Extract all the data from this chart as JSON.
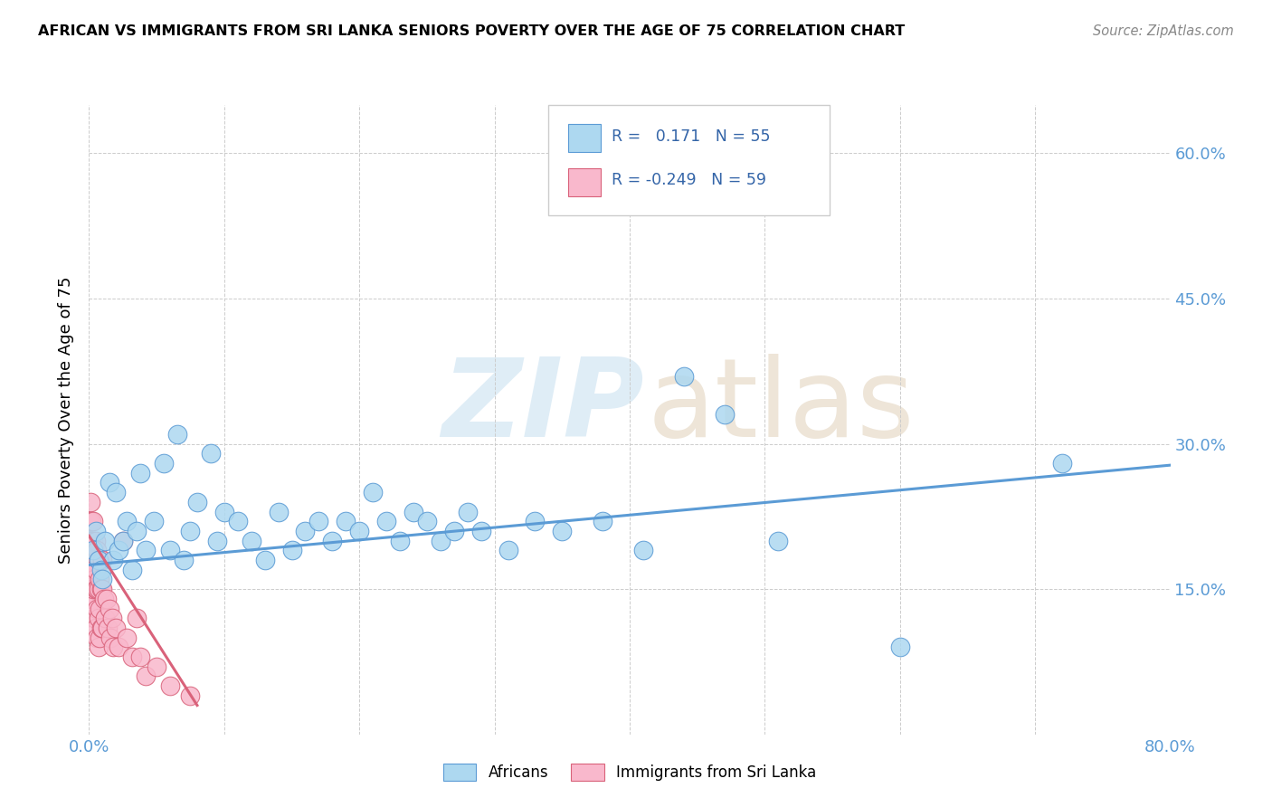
{
  "title": "AFRICAN VS IMMIGRANTS FROM SRI LANKA SENIORS POVERTY OVER THE AGE OF 75 CORRELATION CHART",
  "source": "Source: ZipAtlas.com",
  "ylabel": "Seniors Poverty Over the Age of 75",
  "xlim": [
    0,
    0.8
  ],
  "ylim": [
    0,
    0.65
  ],
  "x_ticks": [
    0.0,
    0.1,
    0.2,
    0.3,
    0.4,
    0.5,
    0.6,
    0.7,
    0.8
  ],
  "y_ticks": [
    0.0,
    0.15,
    0.3,
    0.45,
    0.6
  ],
  "r_african": 0.171,
  "n_african": 55,
  "r_srilanka": -0.249,
  "n_srilanka": 59,
  "african_color": "#add8f0",
  "srilanka_color": "#f9b8cc",
  "african_line_color": "#5b9bd5",
  "srilanka_line_color": "#d9627a",
  "african_x": [
    0.003,
    0.005,
    0.007,
    0.009,
    0.01,
    0.012,
    0.015,
    0.018,
    0.02,
    0.022,
    0.025,
    0.028,
    0.032,
    0.035,
    0.038,
    0.042,
    0.048,
    0.055,
    0.06,
    0.065,
    0.07,
    0.075,
    0.08,
    0.09,
    0.095,
    0.1,
    0.11,
    0.12,
    0.13,
    0.14,
    0.15,
    0.16,
    0.17,
    0.18,
    0.19,
    0.2,
    0.21,
    0.22,
    0.23,
    0.24,
    0.25,
    0.26,
    0.27,
    0.28,
    0.29,
    0.31,
    0.33,
    0.35,
    0.38,
    0.41,
    0.44,
    0.47,
    0.51,
    0.6,
    0.72
  ],
  "african_y": [
    0.19,
    0.21,
    0.18,
    0.17,
    0.16,
    0.2,
    0.26,
    0.18,
    0.25,
    0.19,
    0.2,
    0.22,
    0.17,
    0.21,
    0.27,
    0.19,
    0.22,
    0.28,
    0.19,
    0.31,
    0.18,
    0.21,
    0.24,
    0.29,
    0.2,
    0.23,
    0.22,
    0.2,
    0.18,
    0.23,
    0.19,
    0.21,
    0.22,
    0.2,
    0.22,
    0.21,
    0.25,
    0.22,
    0.2,
    0.23,
    0.22,
    0.2,
    0.21,
    0.23,
    0.21,
    0.19,
    0.22,
    0.21,
    0.22,
    0.19,
    0.37,
    0.33,
    0.2,
    0.09,
    0.28
  ],
  "srilanka_x": [
    0.0,
    0.0,
    0.001,
    0.001,
    0.001,
    0.001,
    0.002,
    0.002,
    0.002,
    0.002,
    0.002,
    0.003,
    0.003,
    0.003,
    0.003,
    0.003,
    0.003,
    0.004,
    0.004,
    0.004,
    0.005,
    0.005,
    0.005,
    0.005,
    0.006,
    0.006,
    0.006,
    0.006,
    0.007,
    0.007,
    0.007,
    0.007,
    0.008,
    0.008,
    0.008,
    0.009,
    0.009,
    0.01,
    0.01,
    0.01,
    0.011,
    0.012,
    0.013,
    0.014,
    0.015,
    0.016,
    0.017,
    0.018,
    0.02,
    0.022,
    0.025,
    0.028,
    0.032,
    0.035,
    0.038,
    0.042,
    0.05,
    0.06,
    0.075
  ],
  "srilanka_y": [
    0.22,
    0.2,
    0.24,
    0.18,
    0.22,
    0.2,
    0.22,
    0.18,
    0.14,
    0.2,
    0.15,
    0.22,
    0.2,
    0.17,
    0.14,
    0.19,
    0.15,
    0.19,
    0.16,
    0.12,
    0.2,
    0.17,
    0.15,
    0.11,
    0.19,
    0.15,
    0.13,
    0.1,
    0.18,
    0.15,
    0.12,
    0.09,
    0.16,
    0.13,
    0.1,
    0.15,
    0.11,
    0.18,
    0.15,
    0.11,
    0.14,
    0.12,
    0.14,
    0.11,
    0.13,
    0.1,
    0.12,
    0.09,
    0.11,
    0.09,
    0.2,
    0.1,
    0.08,
    0.12,
    0.08,
    0.06,
    0.07,
    0.05,
    0.04
  ]
}
